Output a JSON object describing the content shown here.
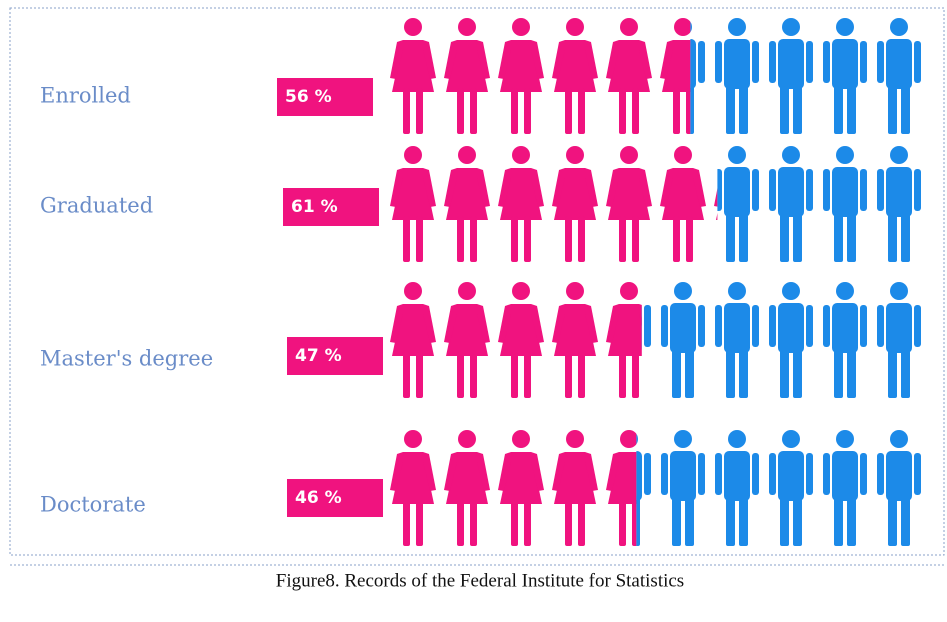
{
  "chart_data": {
    "type": "pictogram",
    "categories": [
      "Enrolled",
      "Graduated",
      "Master's degree",
      "Doctorate"
    ],
    "values": [
      56,
      61,
      47,
      46
    ],
    "value_labels": [
      "56 %",
      "61 %",
      "47 %",
      "46 %"
    ],
    "colors": [
      "#f0137f",
      "#1c8ae8"
    ],
    "caption": "Figure8. Records of the Federal Institute for Statistics"
  }
}
